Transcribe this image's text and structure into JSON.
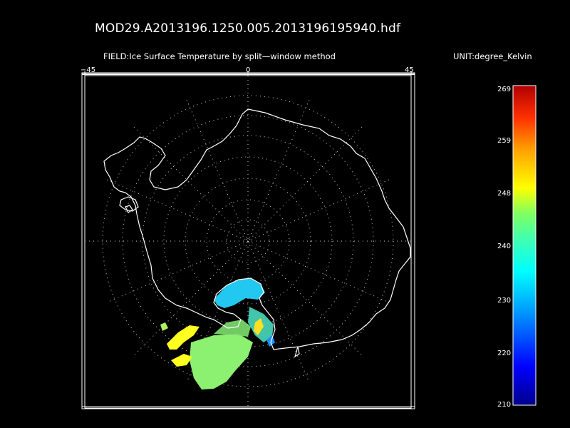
{
  "title": "MOD29.A2013196.1250.005.2013196195940.hdf",
  "field_label": "FIELD:Ice Surface Temperature by split—window method",
  "unit_label": "UNIT:degree_Kelvin",
  "map": {
    "projection": "south polar stereographic",
    "top_tick_labels": [
      "−45",
      "0",
      "45"
    ],
    "graticule": "dotted",
    "coastline_color": "#ffffff"
  },
  "colorbar": {
    "labels": [
      "269",
      "259",
      "248",
      "240",
      "230",
      "220",
      "210"
    ],
    "min": 210,
    "max": 269,
    "colors_bottom_to_top": [
      "#00008b",
      "#0000ff",
      "#00a0ff",
      "#00ffff",
      "#40ffb0",
      "#80ff60",
      "#ffff00",
      "#ffa000",
      "#ff3000",
      "#b00000"
    ]
  },
  "data_patches": [
    {
      "name": "cyan-patch",
      "color": "#22c8f0"
    },
    {
      "name": "green-patch",
      "color": "#8cf070"
    },
    {
      "name": "yellow-patch",
      "color": "#ffff20"
    },
    {
      "name": "blue-patch",
      "color": "#2090ff"
    }
  ]
}
